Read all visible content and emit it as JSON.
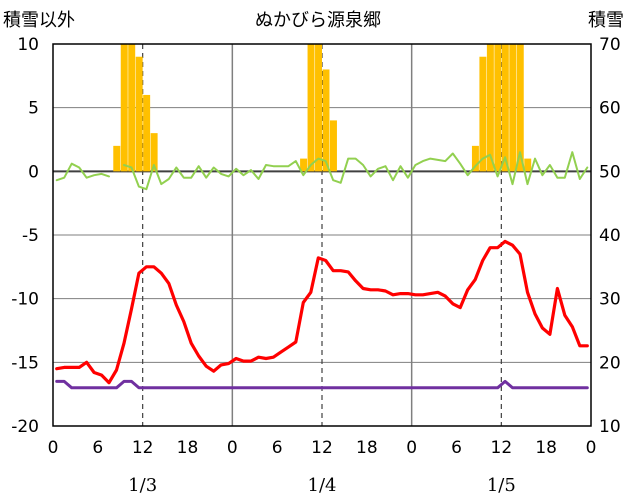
{
  "chart_data": {
    "type": "line",
    "title": "ぬかびら源泉郷",
    "left_axis_title": "積雪以外",
    "right_axis_title": "積雪",
    "y_left": {
      "min": -20,
      "max": 10,
      "ticks": [
        10,
        5,
        0,
        -5,
        -10,
        -15,
        -20
      ]
    },
    "y_right": {
      "min": 10,
      "max": 70,
      "ticks": [
        70,
        60,
        50,
        40,
        30,
        20,
        10
      ]
    },
    "x_hours_total": 72,
    "x_tick_labels": [
      "0",
      "6",
      "12",
      "18",
      "0",
      "6",
      "12",
      "18",
      "0",
      "6",
      "12",
      "18",
      "0"
    ],
    "date_labels": [
      {
        "label": "1/3",
        "hour": 12
      },
      {
        "label": "1/4",
        "hour": 36
      },
      {
        "label": "1/5",
        "hour": 60
      }
    ],
    "day_separators_hours": [
      24,
      48
    ],
    "colors": {
      "temperature": "#ff0000",
      "precipitation": "#ffc000",
      "snow_depth": "#7030a0",
      "wind": "#92d050",
      "axis": "#000000",
      "grid": "#7f7f7f"
    },
    "series": [
      {
        "key": "precipitation",
        "kind": "bar",
        "hours": [
          8,
          9,
          10,
          11,
          12,
          13,
          33,
          34,
          35,
          36,
          37,
          56,
          57,
          58,
          59,
          60,
          61,
          62,
          63
        ],
        "values": [
          2,
          10,
          10,
          9,
          6,
          3,
          1,
          10,
          10,
          8,
          4,
          2,
          9,
          10,
          10,
          10,
          10,
          10,
          1
        ]
      },
      {
        "key": "temperature",
        "kind": "line",
        "hours": [
          0,
          1,
          2,
          3,
          4,
          5,
          6,
          7,
          8,
          9,
          10,
          11,
          12,
          13,
          14,
          15,
          16,
          17,
          18,
          19,
          20,
          21,
          22,
          23,
          24,
          25,
          26,
          27,
          28,
          29,
          30,
          31,
          32,
          33,
          34,
          35,
          36,
          37,
          38,
          39,
          40,
          41,
          42,
          43,
          44,
          45,
          46,
          47,
          48,
          49,
          50,
          51,
          52,
          53,
          54,
          55,
          56,
          57,
          58,
          59,
          60,
          61,
          62,
          63,
          64,
          65,
          66,
          67,
          68,
          69,
          70,
          71
        ],
        "values": [
          -15.5,
          -15.4,
          -15.4,
          -15.4,
          -15.0,
          -15.8,
          -16.0,
          -16.6,
          -15.6,
          -13.5,
          -10.8,
          -8.0,
          -7.5,
          -7.5,
          -8.0,
          -8.8,
          -10.5,
          -11.8,
          -13.5,
          -14.5,
          -15.3,
          -15.7,
          -15.2,
          -15.1,
          -14.7,
          -14.9,
          -14.9,
          -14.6,
          -14.7,
          -14.6,
          -14.2,
          -13.8,
          -13.4,
          -10.3,
          -9.5,
          -6.8,
          -7.0,
          -7.8,
          -7.8,
          -7.9,
          -8.6,
          -9.2,
          -9.3,
          -9.3,
          -9.4,
          -9.7,
          -9.6,
          -9.6,
          -9.7,
          -9.7,
          -9.6,
          -9.5,
          -9.8,
          -10.4,
          -10.7,
          -9.3,
          -8.5,
          -7.0,
          -6.0,
          -6.0,
          -5.5,
          -5.8,
          -6.5,
          -9.5,
          -11.2,
          -12.3,
          -12.8,
          -9.2,
          -11.3,
          -12.2,
          -13.7,
          -13.7
        ]
      },
      {
        "key": "snow_depth",
        "kind": "line",
        "axis": "right",
        "hours": [
          0,
          1,
          2,
          3,
          4,
          5,
          6,
          7,
          8,
          9,
          10,
          11,
          12,
          13,
          14,
          15,
          16,
          17,
          18,
          19,
          20,
          21,
          22,
          23,
          24,
          25,
          26,
          27,
          28,
          29,
          30,
          31,
          32,
          33,
          34,
          35,
          36,
          37,
          38,
          39,
          40,
          41,
          42,
          43,
          44,
          45,
          46,
          47,
          48,
          49,
          50,
          51,
          52,
          53,
          54,
          55,
          56,
          57,
          58,
          59,
          60,
          61,
          62,
          63,
          64,
          65,
          66,
          67,
          68,
          69,
          70,
          71
        ],
        "values": [
          17,
          17,
          16,
          16,
          16,
          16,
          16,
          16,
          16,
          17,
          17,
          16,
          16,
          16,
          16,
          16,
          16,
          16,
          16,
          16,
          16,
          16,
          16,
          16,
          16,
          16,
          16,
          16,
          16,
          16,
          16,
          16,
          16,
          16,
          16,
          16,
          16,
          16,
          16,
          16,
          16,
          16,
          16,
          16,
          16,
          16,
          16,
          16,
          16,
          16,
          16,
          16,
          16,
          16,
          16,
          16,
          16,
          16,
          16,
          16,
          17,
          16,
          16,
          16,
          16,
          16,
          16,
          16,
          16,
          16,
          16,
          16
        ]
      },
      {
        "key": "wind",
        "kind": "line",
        "hours": [
          0,
          1,
          2,
          3,
          4,
          5,
          6,
          7,
          8,
          9,
          10,
          11,
          12,
          13,
          14,
          15,
          16,
          17,
          18,
          19,
          20,
          21,
          22,
          23,
          24,
          25,
          26,
          27,
          28,
          29,
          30,
          31,
          32,
          33,
          34,
          35,
          36,
          37,
          38,
          39,
          40,
          41,
          42,
          43,
          44,
          45,
          46,
          47,
          48,
          49,
          50,
          51,
          52,
          53,
          54,
          55,
          56,
          57,
          58,
          59,
          60,
          61,
          62,
          63,
          64,
          65,
          66,
          67,
          68,
          69,
          70,
          71
        ],
        "values": [
          -0.7,
          -0.5,
          0.6,
          0.3,
          -0.5,
          -0.3,
          -0.2,
          -0.4,
          null,
          0.5,
          0.3,
          -1.2,
          -1.4,
          0.5,
          -1.0,
          -0.6,
          0.3,
          -0.5,
          -0.5,
          0.4,
          -0.5,
          0.3,
          -0.2,
          -0.4,
          0.2,
          -0.3,
          0.1,
          -0.6,
          0.5,
          0.4,
          0.4,
          0.4,
          0.8,
          -0.3,
          0.5,
          1.0,
          0.8,
          -0.7,
          -0.9,
          1.0,
          1.0,
          0.5,
          -0.4,
          0.2,
          0.4,
          -0.7,
          0.4,
          -0.5,
          0.5,
          0.8,
          1.0,
          0.9,
          0.8,
          1.4,
          0.6,
          -0.3,
          0.4,
          1.0,
          1.3,
          -0.4,
          1.1,
          -1.0,
          1.5,
          -1.0,
          1.0,
          -0.3,
          0.5,
          -0.5,
          -0.5,
          1.5,
          -0.6,
          0.3
        ]
      }
    ]
  }
}
